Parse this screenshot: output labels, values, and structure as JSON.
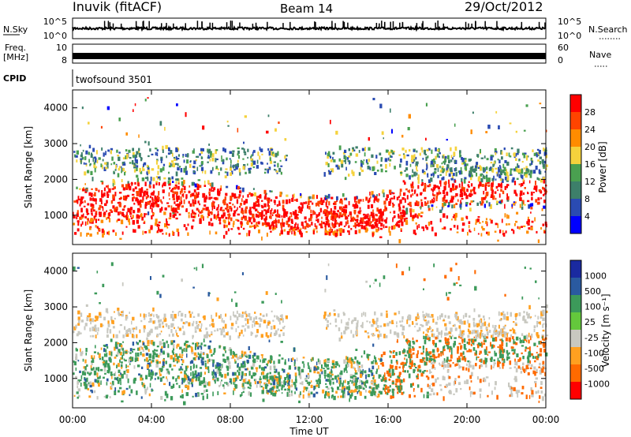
{
  "header": {
    "title": "Inuvik (fitACF)",
    "beam": "Beam 14",
    "date": "29/Oct/2012"
  },
  "colors": {
    "power": [
      "#0000ff",
      "#2a4bb2",
      "#3d7f6a",
      "#4aa050",
      "#f5d23c",
      "#ff8c00",
      "#ff4400",
      "#ff0000"
    ],
    "velocity": [
      "#ff0000",
      "#ff6a00",
      "#ffa020",
      "#c8c8c0",
      "#64c83c",
      "#3c9a5a",
      "#2a5aa0",
      "#1a2aa0"
    ]
  },
  "chart_data": [
    {
      "type": "line",
      "panel": "N.Sky / N.Search",
      "left_label": "N.Sky",
      "right_label": "N.Search",
      "left_ticks": [
        "10^5",
        "10^0"
      ],
      "right_ticks": [
        "10^5",
        "10^0"
      ]
    },
    {
      "type": "line",
      "panel": "Freq / Nave",
      "left_label_line1": "Freq.",
      "left_label_line2": "[MHz]",
      "right_label": "Nave",
      "left_ticks": [
        "10",
        "8"
      ],
      "right_ticks": [
        "60",
        "0"
      ]
    },
    {
      "type": "table",
      "panel": "CPID",
      "label": "CPID",
      "value": "twofsound 3501"
    },
    {
      "type": "heatmap",
      "panel": "power",
      "ylabel": "Slant Range [km]",
      "yticks": [
        "4000",
        "3000",
        "2000",
        "1000"
      ],
      "ylim": [
        180,
        4500
      ],
      "colorbar_label": "Power [dB]",
      "colorbar_ticks": [
        "28",
        "24",
        "20",
        "16",
        "12",
        "8",
        "4"
      ]
    },
    {
      "type": "heatmap",
      "panel": "velocity",
      "ylabel": "Slant Range [km]",
      "yticks": [
        "4000",
        "3000",
        "2000",
        "1000"
      ],
      "ylim": [
        180,
        4500
      ],
      "colorbar_label": "Velocity [m s⁻¹]",
      "colorbar_ticks": [
        "1000",
        "500",
        "100",
        "25",
        "-25",
        "-100",
        "-500",
        "-1000"
      ],
      "xlabel": "Time UT",
      "xticks": [
        "00:00",
        "04:00",
        "08:00",
        "12:00",
        "16:00",
        "20:00",
        "00:00"
      ]
    }
  ]
}
